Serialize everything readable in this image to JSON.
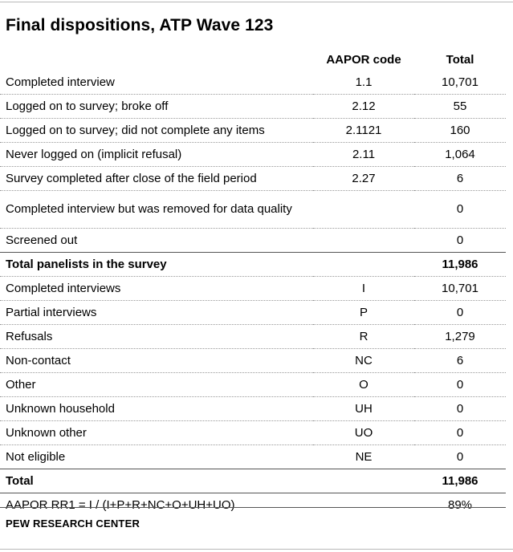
{
  "title": "Final dispositions, ATP Wave 123",
  "columns": {
    "label": "",
    "code": "AAPOR code",
    "total": "Total"
  },
  "rows": [
    {
      "label": "Completed interview",
      "code": "1.1",
      "total": "10,701"
    },
    {
      "label": "Logged on to survey; broke off",
      "code": "2.12",
      "total": "55"
    },
    {
      "label": "Logged on to survey; did not complete any items",
      "code": "2.1121",
      "total": "160"
    },
    {
      "label": "Never logged on (implicit refusal)",
      "code": "2.11",
      "total": "1,064"
    },
    {
      "label": "Survey completed after close of the field period",
      "code": "2.27",
      "total": "6"
    },
    {
      "label": "Completed interview but was removed for data quality",
      "code": "",
      "total": "0"
    },
    {
      "label": "Screened out",
      "code": "",
      "total": "0"
    }
  ],
  "subtotal": {
    "label": "Total panelists in the survey",
    "code": "",
    "total": "11,986"
  },
  "rows2": [
    {
      "label": "Completed interviews",
      "code": "I",
      "total": "10,701"
    },
    {
      "label": "Partial interviews",
      "code": "P",
      "total": "0"
    },
    {
      "label": "Refusals",
      "code": "R",
      "total": "1,279"
    },
    {
      "label": "Non-contact",
      "code": "NC",
      "total": "6"
    },
    {
      "label": "Other",
      "code": "O",
      "total": "0"
    },
    {
      "label": "Unknown household",
      "code": "UH",
      "total": "0"
    },
    {
      "label": "Unknown other",
      "code": "UO",
      "total": "0"
    },
    {
      "label": "Not eligible",
      "code": "NE",
      "total": "0"
    }
  ],
  "total": {
    "label": "Total",
    "code": "",
    "total": "11,986"
  },
  "rate": {
    "label": "AAPOR RR1 = I / (I+P+R+NC+O+UH+UO)",
    "code": "",
    "total": "89%"
  },
  "source": "PEW RESEARCH CENTER"
}
